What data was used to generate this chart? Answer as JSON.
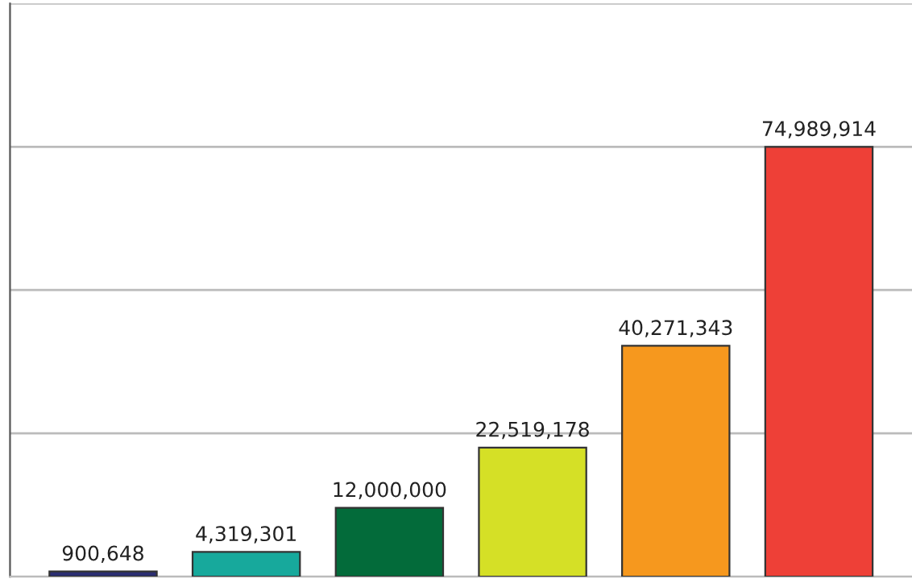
{
  "chart_data": {
    "type": "bar",
    "categories": [
      null,
      null,
      null,
      null,
      null,
      null
    ],
    "values": [
      900648,
      4319301,
      12000000,
      22519178,
      40271343,
      74989914
    ],
    "colors": [
      "#2b2e72",
      "#17a99c",
      "#036b3a",
      "#d5e026",
      "#f6981e",
      "#ee4037"
    ],
    "ylim": [
      0,
      100000000
    ],
    "yticks": [
      {
        "value": 0,
        "label": null
      },
      {
        "value": 25000000,
        "label": null
      },
      {
        "value": 50000000,
        "label": null
      },
      {
        "value": 75000000,
        "label": null
      },
      {
        "value": 100000000,
        "label": null
      }
    ],
    "value_labels": [
      "900,648",
      "4,319,301",
      "12,000,000",
      "22,519,178",
      "40,271,343",
      "74,989,914"
    ],
    "grid": "y"
  }
}
